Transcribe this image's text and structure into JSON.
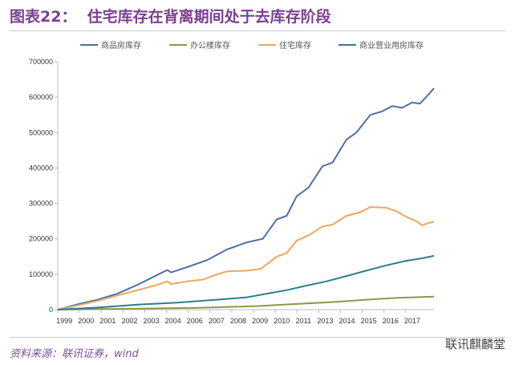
{
  "header": {
    "title": "图表22：  住宅库存在背离期间处于去库存阶段"
  },
  "footer": {
    "source": "资料来源：联讯证券，wind",
    "watermark": "联讯麒麟堂"
  },
  "chart_data": {
    "type": "line",
    "title": "",
    "xlabel": "",
    "ylabel": "",
    "ylim": [
      0,
      700000
    ],
    "xlim": [
      1999,
      2017.9
    ],
    "yticks": [
      0,
      100000,
      200000,
      300000,
      400000,
      500000,
      600000,
      700000
    ],
    "xtick_labels": [
      "1999",
      "2000",
      "2001",
      "2002",
      "2003",
      "2004",
      "2006",
      "2007",
      "2008",
      "2009",
      "2010",
      "2011",
      "2013",
      "2014",
      "2015",
      "2016",
      "2017"
    ],
    "legend": "top",
    "grid": false,
    "series": [
      {
        "name": "商品房库存",
        "color": "#4f6fa8",
        "points": [
          [
            1999,
            0
          ],
          [
            2000,
            15000
          ],
          [
            2001,
            28000
          ],
          [
            2002,
            45000
          ],
          [
            2003,
            70000
          ],
          [
            2004,
            98000
          ],
          [
            2004.5,
            112000
          ],
          [
            2004.7,
            105000
          ],
          [
            2005.5,
            120000
          ],
          [
            2006.5,
            140000
          ],
          [
            2007.5,
            170000
          ],
          [
            2008.5,
            190000
          ],
          [
            2009.3,
            200000
          ],
          [
            2010,
            255000
          ],
          [
            2010.5,
            265000
          ],
          [
            2011,
            320000
          ],
          [
            2011.6,
            345000
          ],
          [
            2012.3,
            405000
          ],
          [
            2012.8,
            415000
          ],
          [
            2013.5,
            480000
          ],
          [
            2014,
            500000
          ],
          [
            2014.7,
            550000
          ],
          [
            2015.3,
            560000
          ],
          [
            2015.8,
            575000
          ],
          [
            2016.3,
            570000
          ],
          [
            2016.8,
            585000
          ],
          [
            2017.2,
            582000
          ],
          [
            2017.5,
            600000
          ],
          [
            2017.9,
            625000
          ]
        ]
      },
      {
        "name": "办公楼库存",
        "color": "#8a9a4a",
        "points": [
          [
            1999,
            0
          ],
          [
            2003,
            3000
          ],
          [
            2006,
            5000
          ],
          [
            2009,
            10000
          ],
          [
            2011,
            16000
          ],
          [
            2013,
            22000
          ],
          [
            2014.5,
            28000
          ],
          [
            2016,
            33000
          ],
          [
            2017.9,
            37000
          ]
        ]
      },
      {
        "name": "住宅库存",
        "color": "#f0a65a",
        "points": [
          [
            1999,
            0
          ],
          [
            2000,
            12000
          ],
          [
            2001,
            25000
          ],
          [
            2002,
            40000
          ],
          [
            2003,
            55000
          ],
          [
            2004,
            70000
          ],
          [
            2004.5,
            80000
          ],
          [
            2004.7,
            72000
          ],
          [
            2005.5,
            80000
          ],
          [
            2006.3,
            85000
          ],
          [
            2007,
            100000
          ],
          [
            2007.5,
            108000
          ],
          [
            2008.5,
            110000
          ],
          [
            2009.2,
            115000
          ],
          [
            2010,
            150000
          ],
          [
            2010.5,
            160000
          ],
          [
            2011,
            195000
          ],
          [
            2011.6,
            210000
          ],
          [
            2012.3,
            235000
          ],
          [
            2012.8,
            240000
          ],
          [
            2013.5,
            265000
          ],
          [
            2014.2,
            275000
          ],
          [
            2014.7,
            290000
          ],
          [
            2015.5,
            288000
          ],
          [
            2016,
            278000
          ],
          [
            2016.5,
            262000
          ],
          [
            2017,
            250000
          ],
          [
            2017.3,
            238000
          ],
          [
            2017.6,
            245000
          ],
          [
            2017.9,
            248000
          ]
        ]
      },
      {
        "name": "商业营业用房库存",
        "color": "#2f7f8a",
        "points": [
          [
            1999,
            0
          ],
          [
            2001,
            6000
          ],
          [
            2003,
            14000
          ],
          [
            2005,
            20000
          ],
          [
            2007,
            28000
          ],
          [
            2008.5,
            35000
          ],
          [
            2009.5,
            45000
          ],
          [
            2010.5,
            55000
          ],
          [
            2011.5,
            68000
          ],
          [
            2012.5,
            80000
          ],
          [
            2013.5,
            95000
          ],
          [
            2014.5,
            110000
          ],
          [
            2015.5,
            125000
          ],
          [
            2016.5,
            138000
          ],
          [
            2017.3,
            145000
          ],
          [
            2017.9,
            152000
          ]
        ]
      }
    ]
  }
}
